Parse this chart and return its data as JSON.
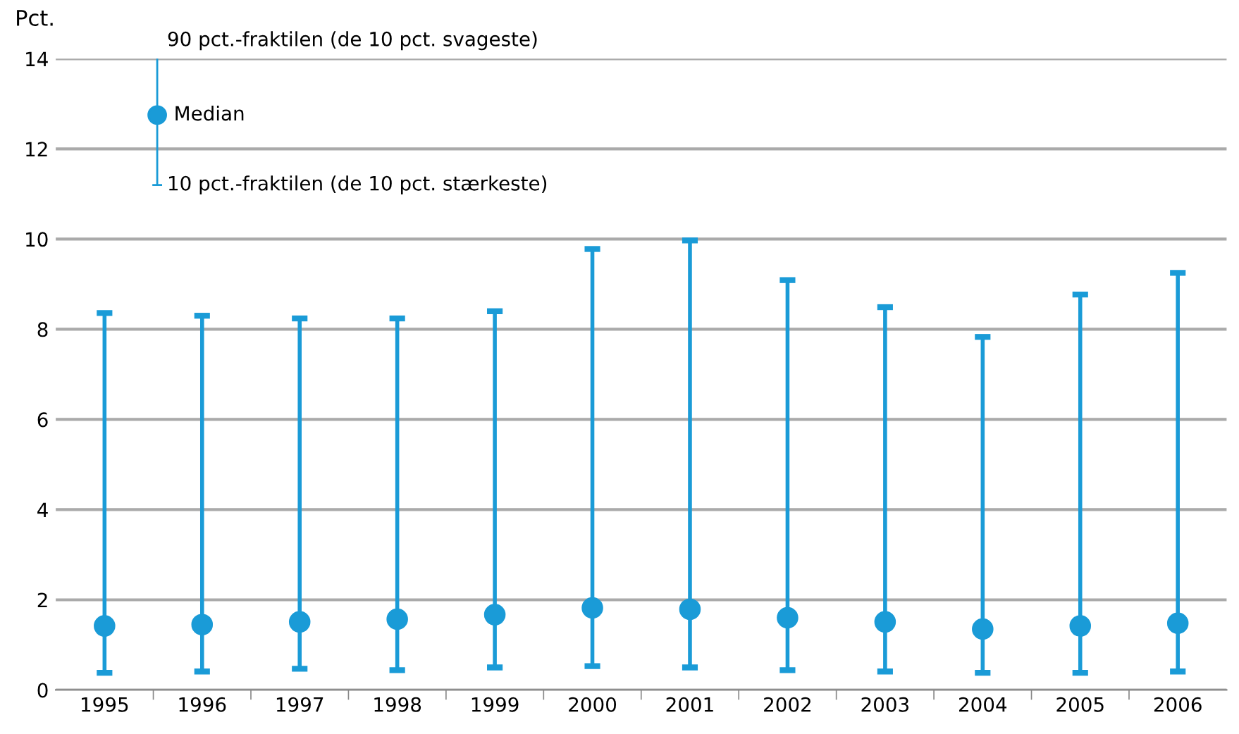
{
  "chart_data": {
    "type": "scatter",
    "ylabel": "Pct.",
    "categories": [
      "1995",
      "1996",
      "1997",
      "1998",
      "1999",
      "2000",
      "2001",
      "2002",
      "2003",
      "2004",
      "2005",
      "2006"
    ],
    "series": [
      {
        "name": "Median",
        "color": "#1a9bd7",
        "values": [
          1.42,
          1.45,
          1.51,
          1.57,
          1.67,
          1.82,
          1.79,
          1.6,
          1.51,
          1.35,
          1.42,
          1.48
        ],
        "errors": [
          [
            0.38,
            8.36
          ],
          [
            0.41,
            8.3
          ],
          [
            0.47,
            8.24
          ],
          [
            0.44,
            8.24
          ],
          [
            0.5,
            8.4
          ],
          [
            0.53,
            9.78
          ],
          [
            0.5,
            9.97
          ],
          [
            0.44,
            9.09
          ],
          [
            0.41,
            8.49
          ],
          [
            0.38,
            7.83
          ],
          [
            0.38,
            8.77
          ],
          [
            0.41,
            9.25
          ]
        ]
      }
    ],
    "annotations": [
      "90 pct.-fraktilen (de 10 pct. svageste)",
      "10 pct.-fraktilen (de 10 pct. stærkeste)"
    ],
    "ylim": [
      0,
      14
    ],
    "yticks": [
      0,
      2,
      4,
      6,
      8,
      10,
      12,
      14
    ],
    "grid": "y",
    "marker": "circle",
    "legend": "top left"
  }
}
